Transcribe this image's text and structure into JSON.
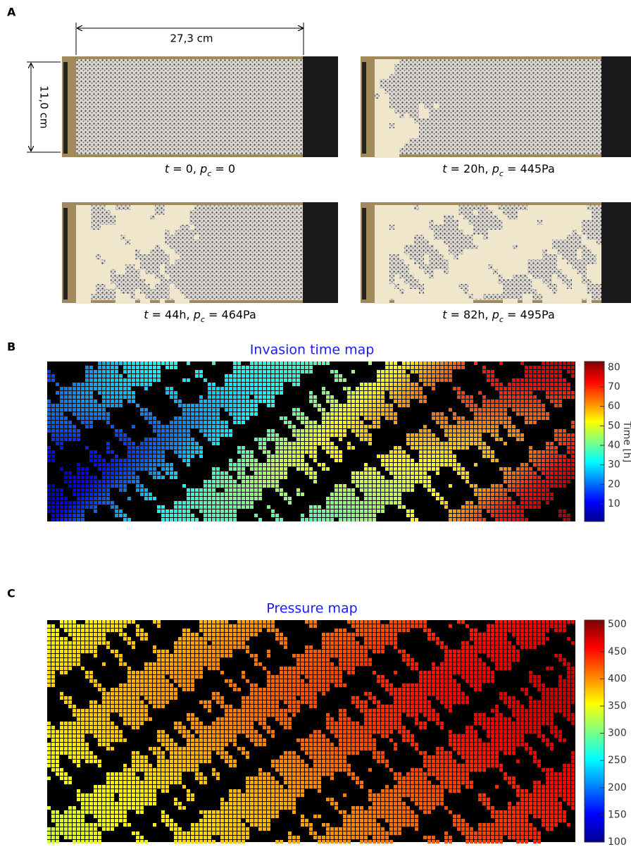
{
  "panel_labels": [
    "A",
    "B",
    "C"
  ],
  "panel_a": {
    "width_label": "27,3 cm",
    "height_label": "11,0 cm",
    "captions": [
      {
        "t": "t",
        "t_value": " = 0, ",
        "p": "p",
        "sub": "c",
        "p_value": " = 0"
      },
      {
        "t": "t",
        "t_value": " = 20h, ",
        "p": "p",
        "sub": "c",
        "p_value": " = 445Pa"
      },
      {
        "t": "t",
        "t_value": " = 44h, ",
        "p": "p",
        "sub": "c",
        "p_value": " = 464Pa"
      },
      {
        "t": "t",
        "t_value": " = 82h, ",
        "p": "p",
        "sub": "c",
        "p_value": " = 495Pa"
      }
    ]
  },
  "panel_b": {
    "title": "Invasion time map",
    "colorbar": {
      "label": "Time [h]",
      "lim": [
        1,
        83
      ],
      "ticks": [
        10,
        20,
        30,
        40,
        50,
        60,
        70,
        80
      ]
    }
  },
  "panel_c": {
    "title": "Pressure map",
    "colorbar": {
      "lim": [
        100,
        508
      ],
      "ticks": [
        100,
        150,
        200,
        250,
        300,
        350,
        400,
        450,
        500
      ]
    }
  }
}
